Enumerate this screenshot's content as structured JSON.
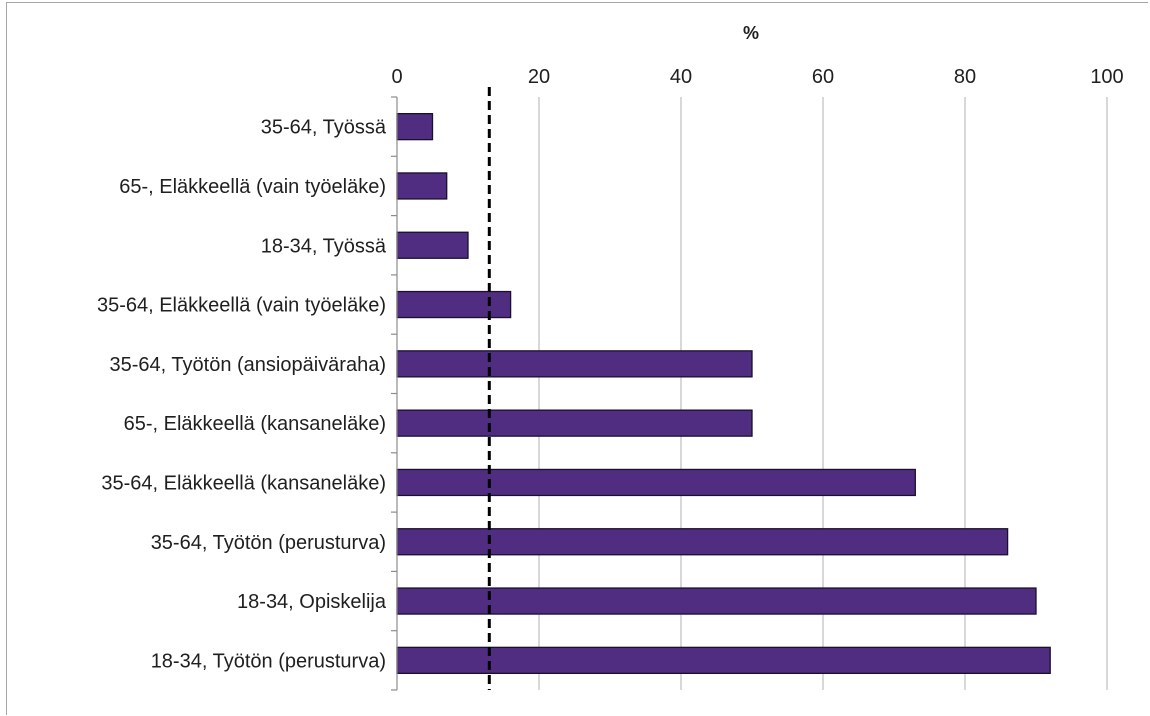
{
  "chart_data": {
    "type": "bar",
    "orientation": "horizontal",
    "axis_position": "top",
    "xlabel": "%",
    "ylabel": "",
    "xlim": [
      0,
      100
    ],
    "xticks": [
      0,
      20,
      40,
      60,
      80,
      100
    ],
    "grid": true,
    "legend": "none",
    "categories": [
      "35-64, Työssä",
      "65-, Eläkkeellä (vain työeläke)",
      "18-34, Työssä",
      "35-64, Eläkkeellä (vain työeläke)",
      "35-64, Työtön (ansiopäiväraha)",
      "65-, Eläkkeellä (kansaneläke)",
      "35-64, Eläkkeellä (kansaneläke)",
      "35-64, Työtön (perusturva)",
      "18-34, Opiskelija",
      "18-34, Työtön (perusturva)"
    ],
    "values": [
      5,
      7,
      10,
      16,
      50,
      50,
      73,
      86,
      90,
      92
    ],
    "reference_line": {
      "value": 13,
      "style": "dashed"
    },
    "colors": {
      "bar_fill": "#512d82",
      "bar_border": "#1a0f2e",
      "grid": "#bfbfbf",
      "axis": "#8c8c8c",
      "reference_line": "#000000"
    }
  }
}
